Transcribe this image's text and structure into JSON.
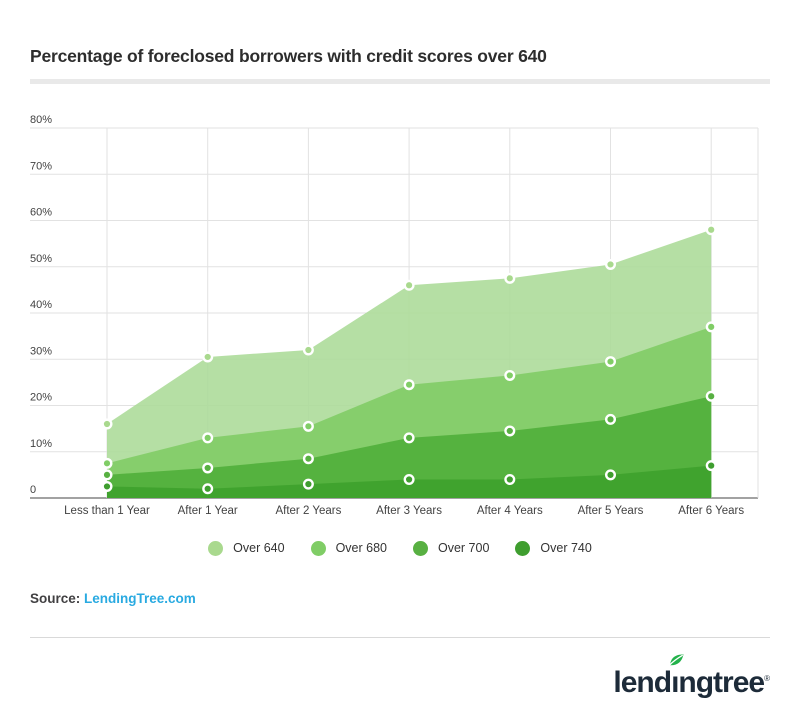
{
  "title": "Percentage of foreclosed borrowers with credit scores over 640",
  "source": {
    "label": "Source:",
    "link_text": "LendingTree.com",
    "link_color": "#29aae1"
  },
  "logo": {
    "text_left": "lend",
    "text_i": "ı",
    "text_right": "ngtree",
    "trademark": "®",
    "text_color": "#1d2b39",
    "leaf_color": "#23b24b"
  },
  "chart_data": {
    "type": "area",
    "title": "Percentage of foreclosed borrowers with credit scores over 640",
    "categories": [
      "Less than 1 Year",
      "After 1 Year",
      "After 2 Years",
      "After 3 Years",
      "After 4 Years",
      "After 5 Years",
      "After 6 Years"
    ],
    "series": [
      {
        "name": "Over 640",
        "color": "#a9d98e",
        "area_color": "#abdb97",
        "values": [
          16,
          30.5,
          32,
          46,
          47.5,
          50.5,
          58
        ]
      },
      {
        "name": "Over 680",
        "color": "#80cd66",
        "area_color": "#7fcc64",
        "values": [
          7.5,
          13,
          15.5,
          24.5,
          26.5,
          29.5,
          37
        ]
      },
      {
        "name": "Over 700",
        "color": "#58b042",
        "area_color": "#4fae39",
        "values": [
          5,
          6.5,
          8.5,
          13,
          14.5,
          17,
          22
        ]
      },
      {
        "name": "Over 740",
        "color": "#3f9e2f",
        "area_color": "#3da02c",
        "values": [
          2.5,
          2,
          3,
          4,
          4,
          5,
          7
        ]
      }
    ],
    "xlabel": "",
    "ylabel": "",
    "ylim": [
      0,
      80
    ],
    "ytick_step": 10,
    "ytick_suffix": "%",
    "ytick_zero_label": "0",
    "grid": true,
    "legend_position": "bottom",
    "marker_stroke": "#ffffff",
    "grid_color": "#e2e2e2",
    "axis_color": "#848484",
    "tick_label_color": "#424242"
  }
}
